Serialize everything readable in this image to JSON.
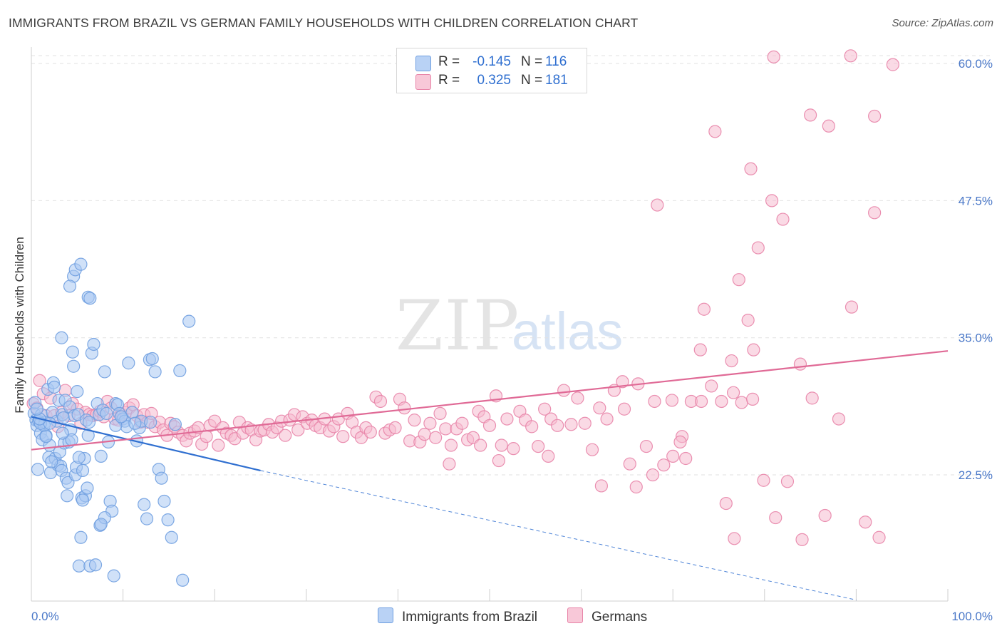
{
  "title": "IMMIGRANTS FROM BRAZIL VS GERMAN FAMILY HOUSEHOLDS WITH CHILDREN CORRELATION CHART",
  "source": "Source: ZipAtlas.com",
  "watermark": {
    "zip": "ZIP",
    "atlas": "atlas"
  },
  "legend": {
    "rows": [
      {
        "r_label": "R =",
        "r_value": "-0.145",
        "n_label": "N =",
        "n_value": "116",
        "color": "#aac8f2"
      },
      {
        "r_label": "R =",
        "r_value": "0.325",
        "n_label": "N =",
        "n_value": "181",
        "color": "#f6bcd0"
      }
    ]
  },
  "bottom_legend": {
    "items": [
      {
        "label": "Immigrants from Brazil",
        "color": "#aac8f2"
      },
      {
        "label": "Germans",
        "color": "#f6bcd0"
      }
    ]
  },
  "chart_data": {
    "type": "scatter",
    "title": "IMMIGRANTS FROM BRAZIL VS GERMAN FAMILY HOUSEHOLDS WITH CHILDREN CORRELATION CHART",
    "xlabel": "",
    "ylabel": "Family Households with Children",
    "x_tick_labels": [
      "0.0%",
      "100.0%"
    ],
    "y_tick_labels": [
      "22.5%",
      "35.0%",
      "47.5%",
      "60.0%"
    ],
    "y_ticks": [
      22.5,
      35.0,
      47.5,
      60.0
    ],
    "xlim": [
      0,
      100
    ],
    "ylim": [
      11.0,
      61.5
    ],
    "grid": true,
    "legend_position": "top-center",
    "series": [
      {
        "name": "Immigrants from Brazil",
        "color": "#6f9fe0",
        "fill": "#aac8f2",
        "trend": {
          "x": [
            0,
            25.0
          ],
          "y": [
            27.8,
            22.9
          ],
          "dashed_to": [
            90,
            11.1
          ]
        },
        "points": [
          [
            0.3,
            28.1
          ],
          [
            0.5,
            27.5
          ],
          [
            0.6,
            27.0
          ],
          [
            0.4,
            29.1
          ],
          [
            0.8,
            27.4
          ],
          [
            1.0,
            26.3
          ],
          [
            1.1,
            28.0
          ],
          [
            0.7,
            23.0
          ],
          [
            1.2,
            25.7
          ],
          [
            1.5,
            27.3
          ],
          [
            1.6,
            26.1
          ],
          [
            1.8,
            30.3
          ],
          [
            1.9,
            24.1
          ],
          [
            2.0,
            25.2
          ],
          [
            2.1,
            22.7
          ],
          [
            2.3,
            28.2
          ],
          [
            2.4,
            30.9
          ],
          [
            2.5,
            30.5
          ],
          [
            2.6,
            24.0
          ],
          [
            2.8,
            27.4
          ],
          [
            2.9,
            23.4
          ],
          [
            3.0,
            29.3
          ],
          [
            3.1,
            24.6
          ],
          [
            3.2,
            23.3
          ],
          [
            3.3,
            22.9
          ],
          [
            3.4,
            28.0
          ],
          [
            3.5,
            27.7
          ],
          [
            3.6,
            25.4
          ],
          [
            3.7,
            29.3
          ],
          [
            3.8,
            22.2
          ],
          [
            3.9,
            20.6
          ],
          [
            4.0,
            21.8
          ],
          [
            4.1,
            25.5
          ],
          [
            4.2,
            28.7
          ],
          [
            4.3,
            26.6
          ],
          [
            4.4,
            25.7
          ],
          [
            4.5,
            33.7
          ],
          [
            4.6,
            32.4
          ],
          [
            4.7,
            27.9
          ],
          [
            4.8,
            22.5
          ],
          [
            4.9,
            23.2
          ],
          [
            5.0,
            30.1
          ],
          [
            5.1,
            28.0
          ],
          [
            5.2,
            14.2
          ],
          [
            5.4,
            16.8
          ],
          [
            5.5,
            20.4
          ],
          [
            5.6,
            22.9
          ],
          [
            5.8,
            24.0
          ],
          [
            5.9,
            20.6
          ],
          [
            6.0,
            27.5
          ],
          [
            6.1,
            21.3
          ],
          [
            6.2,
            26.1
          ],
          [
            6.3,
            27.3
          ],
          [
            6.4,
            14.2
          ],
          [
            6.6,
            33.6
          ],
          [
            6.8,
            34.4
          ],
          [
            7.0,
            14.3
          ],
          [
            7.2,
            29.0
          ],
          [
            7.4,
            28.0
          ],
          [
            7.5,
            17.9
          ],
          [
            7.6,
            24.2
          ],
          [
            7.8,
            28.4
          ],
          [
            8.0,
            31.9
          ],
          [
            8.2,
            28.1
          ],
          [
            8.4,
            25.5
          ],
          [
            8.6,
            20.1
          ],
          [
            8.8,
            19.2
          ],
          [
            9.0,
            13.3
          ],
          [
            9.2,
            29.0
          ],
          [
            9.4,
            28.9
          ],
          [
            9.6,
            28.1
          ],
          [
            10.0,
            27.6
          ],
          [
            10.2,
            27.4
          ],
          [
            10.4,
            26.9
          ],
          [
            10.6,
            32.7
          ],
          [
            11.0,
            28.2
          ],
          [
            11.5,
            25.6
          ],
          [
            11.8,
            26.8
          ],
          [
            12.0,
            27.4
          ],
          [
            12.3,
            19.8
          ],
          [
            12.6,
            18.5
          ],
          [
            12.9,
            33.0
          ],
          [
            13.2,
            33.1
          ],
          [
            13.5,
            31.9
          ],
          [
            13.9,
            23.0
          ],
          [
            14.2,
            22.2
          ],
          [
            14.5,
            20.1
          ],
          [
            14.9,
            18.4
          ],
          [
            15.3,
            16.8
          ],
          [
            15.7,
            27.1
          ],
          [
            16.2,
            32.0
          ],
          [
            16.5,
            12.9
          ],
          [
            17.2,
            36.5
          ],
          [
            4.6,
            40.6
          ],
          [
            4.8,
            41.2
          ],
          [
            5.4,
            41.7
          ],
          [
            4.2,
            39.7
          ],
          [
            6.2,
            38.7
          ],
          [
            6.4,
            38.6
          ],
          [
            3.3,
            35.0
          ],
          [
            1.4,
            27.0
          ],
          [
            1.0,
            27.2
          ],
          [
            2.0,
            27.2
          ],
          [
            0.9,
            27.6
          ],
          [
            0.6,
            28.5
          ],
          [
            1.6,
            26.0
          ],
          [
            2.2,
            23.7
          ],
          [
            5.6,
            20.2
          ],
          [
            8.0,
            18.6
          ],
          [
            7.6,
            18.0
          ],
          [
            13.0,
            27.3
          ],
          [
            9.2,
            27.0
          ],
          [
            9.8,
            27.8
          ],
          [
            11.3,
            27.2
          ],
          [
            5.2,
            24.1
          ],
          [
            3.4,
            26.3
          ]
        ]
      },
      {
        "name": "Germans",
        "color": "#e884a8",
        "fill": "#f6bcd0",
        "trend": {
          "x": [
            0,
            100
          ],
          "y": [
            24.8,
            33.8
          ]
        },
        "points": [
          [
            0.2,
            29.0
          ],
          [
            0.6,
            28.6
          ],
          [
            0.9,
            31.1
          ],
          [
            1.3,
            29.9
          ],
          [
            1.6,
            27.9
          ],
          [
            2.1,
            29.5
          ],
          [
            2.5,
            27.9
          ],
          [
            2.9,
            26.9
          ],
          [
            3.3,
            28.2
          ],
          [
            3.7,
            30.2
          ],
          [
            4.1,
            27.9
          ],
          [
            4.5,
            29.0
          ],
          [
            5.0,
            28.5
          ],
          [
            5.4,
            27.2
          ],
          [
            5.9,
            28.2
          ],
          [
            6.3,
            28.0
          ],
          [
            6.7,
            27.9
          ],
          [
            7.1,
            28.0
          ],
          [
            7.5,
            28.3
          ],
          [
            7.9,
            27.8
          ],
          [
            8.3,
            29.2
          ],
          [
            8.7,
            28.6
          ],
          [
            9.1,
            27.6
          ],
          [
            9.5,
            27.5
          ],
          [
            9.9,
            28.0
          ],
          [
            10.3,
            28.2
          ],
          [
            10.7,
            28.6
          ],
          [
            11.1,
            28.9
          ],
          [
            11.5,
            27.9
          ],
          [
            11.9,
            27.3
          ],
          [
            12.3,
            28.0
          ],
          [
            12.7,
            27.3
          ],
          [
            13.1,
            28.1
          ],
          [
            13.5,
            26.9
          ],
          [
            14.0,
            27.3
          ],
          [
            14.4,
            26.6
          ],
          [
            14.8,
            26.1
          ],
          [
            15.2,
            27.2
          ],
          [
            15.6,
            26.9
          ],
          [
            16.0,
            26.4
          ],
          [
            16.5,
            26.1
          ],
          [
            16.9,
            25.6
          ],
          [
            17.3,
            26.3
          ],
          [
            17.8,
            26.5
          ],
          [
            18.2,
            26.8
          ],
          [
            18.6,
            25.3
          ],
          [
            19.1,
            26.0
          ],
          [
            19.5,
            27.0
          ],
          [
            20.0,
            27.4
          ],
          [
            20.4,
            25.2
          ],
          [
            20.9,
            26.8
          ],
          [
            21.3,
            26.3
          ],
          [
            21.8,
            26.1
          ],
          [
            22.2,
            25.8
          ],
          [
            22.7,
            27.3
          ],
          [
            23.1,
            26.3
          ],
          [
            23.6,
            26.8
          ],
          [
            24.0,
            26.6
          ],
          [
            24.5,
            25.7
          ],
          [
            25.0,
            26.5
          ],
          [
            25.4,
            26.6
          ],
          [
            25.9,
            27.1
          ],
          [
            26.3,
            26.4
          ],
          [
            26.8,
            26.8
          ],
          [
            27.3,
            27.4
          ],
          [
            27.7,
            26.1
          ],
          [
            28.2,
            27.5
          ],
          [
            28.7,
            28.0
          ],
          [
            29.1,
            26.6
          ],
          [
            29.6,
            27.8
          ],
          [
            30.1,
            27.2
          ],
          [
            30.6,
            27.5
          ],
          [
            31.0,
            27.0
          ],
          [
            31.5,
            26.8
          ],
          [
            32.0,
            27.6
          ],
          [
            32.5,
            26.5
          ],
          [
            33.0,
            26.9
          ],
          [
            33.5,
            27.6
          ],
          [
            34.0,
            26.0
          ],
          [
            34.5,
            28.1
          ],
          [
            35.0,
            27.3
          ],
          [
            35.5,
            26.4
          ],
          [
            36.0,
            25.9
          ],
          [
            36.5,
            26.8
          ],
          [
            37.0,
            26.4
          ],
          [
            37.6,
            29.6
          ],
          [
            38.1,
            29.2
          ],
          [
            38.6,
            26.3
          ],
          [
            39.1,
            26.6
          ],
          [
            39.7,
            26.8
          ],
          [
            40.2,
            29.4
          ],
          [
            40.7,
            28.6
          ],
          [
            41.3,
            25.6
          ],
          [
            41.8,
            27.5
          ],
          [
            42.4,
            25.5
          ],
          [
            42.9,
            26.2
          ],
          [
            43.5,
            27.2
          ],
          [
            44.1,
            25.9
          ],
          [
            44.6,
            28.1
          ],
          [
            45.2,
            26.7
          ],
          [
            45.8,
            25.2
          ],
          [
            46.4,
            26.7
          ],
          [
            47.0,
            27.2
          ],
          [
            47.6,
            25.7
          ],
          [
            48.2,
            25.9
          ],
          [
            48.8,
            28.3
          ],
          [
            49.4,
            27.8
          ],
          [
            50.0,
            27.0
          ],
          [
            50.7,
            29.7
          ],
          [
            51.3,
            25.2
          ],
          [
            51.9,
            27.6
          ],
          [
            52.6,
            24.9
          ],
          [
            53.3,
            28.3
          ],
          [
            53.9,
            27.5
          ],
          [
            54.6,
            26.9
          ],
          [
            55.3,
            25.1
          ],
          [
            56.0,
            28.5
          ],
          [
            56.7,
            27.6
          ],
          [
            57.4,
            27.0
          ],
          [
            58.1,
            30.2
          ],
          [
            58.9,
            27.1
          ],
          [
            59.6,
            29.5
          ],
          [
            60.4,
            27.2
          ],
          [
            61.2,
            24.8
          ],
          [
            62.0,
            28.6
          ],
          [
            62.8,
            27.6
          ],
          [
            63.6,
            30.2
          ],
          [
            64.5,
            31.0
          ],
          [
            65.3,
            23.5
          ],
          [
            66.2,
            30.8
          ],
          [
            67.1,
            25.1
          ],
          [
            68.0,
            29.2
          ],
          [
            69.0,
            23.4
          ],
          [
            70.0,
            24.2
          ],
          [
            71.0,
            26.0
          ],
          [
            72.0,
            29.2
          ],
          [
            73.1,
            29.2
          ],
          [
            74.2,
            30.6
          ],
          [
            75.3,
            29.2
          ],
          [
            76.4,
            32.9
          ],
          [
            77.5,
            29.1
          ],
          [
            78.7,
            29.4
          ],
          [
            79.9,
            22.0
          ],
          [
            81.2,
            18.6
          ],
          [
            82.5,
            21.9
          ],
          [
            83.9,
            32.6
          ],
          [
            85.2,
            29.5
          ],
          [
            86.6,
            18.8
          ],
          [
            88.1,
            27.6
          ],
          [
            89.5,
            37.8
          ],
          [
            91.0,
            18.2
          ],
          [
            92.5,
            16.8
          ],
          [
            94.0,
            59.9
          ],
          [
            89.4,
            60.7
          ],
          [
            81.0,
            60.6
          ],
          [
            74.6,
            53.8
          ],
          [
            78.5,
            50.4
          ],
          [
            87.0,
            54.3
          ],
          [
            85.0,
            55.3
          ],
          [
            92.0,
            55.2
          ],
          [
            92.0,
            46.4
          ],
          [
            80.8,
            47.5
          ],
          [
            68.3,
            47.1
          ],
          [
            82.0,
            45.8
          ],
          [
            79.3,
            43.2
          ],
          [
            77.2,
            40.3
          ],
          [
            73.4,
            37.6
          ],
          [
            78.2,
            36.6
          ],
          [
            78.8,
            33.9
          ],
          [
            73.0,
            33.9
          ],
          [
            75.8,
            19.9
          ],
          [
            76.7,
            16.7
          ],
          [
            84.1,
            16.6
          ],
          [
            66.0,
            21.4
          ],
          [
            62.2,
            21.5
          ],
          [
            67.8,
            22.5
          ],
          [
            71.4,
            24.0
          ],
          [
            56.4,
            24.2
          ],
          [
            51.0,
            23.8
          ],
          [
            45.6,
            23.5
          ],
          [
            49.0,
            25.2
          ],
          [
            70.8,
            25.5
          ],
          [
            76.6,
            30.0
          ],
          [
            69.9,
            29.3
          ],
          [
            64.7,
            28.5
          ]
        ]
      }
    ]
  }
}
